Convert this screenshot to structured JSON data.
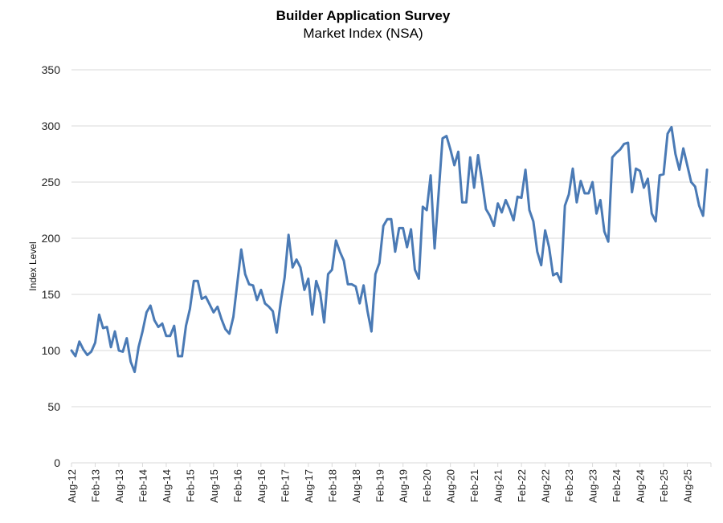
{
  "chart_data": {
    "type": "line",
    "title": "Builder Application Survey",
    "subtitle": "Market Index (NSA)",
    "xlabel": "",
    "ylabel": "Index Level",
    "ylim": [
      0,
      350
    ],
    "yticks": [
      0,
      50,
      100,
      150,
      200,
      250,
      300,
      350
    ],
    "grid": true,
    "legend": "none",
    "line_color": "#4a7ab5",
    "grid_color": "#d9d9d9",
    "x_start": "Aug-12",
    "x_end_axis": "Feb-26",
    "xtick_labels": [
      "Aug-12",
      "Feb-13",
      "Aug-13",
      "Feb-14",
      "Aug-14",
      "Feb-15",
      "Aug-15",
      "Feb-16",
      "Aug-16",
      "Feb-17",
      "Aug-17",
      "Feb-18",
      "Aug-18",
      "Feb-19",
      "Aug-19",
      "Feb-20",
      "Aug-20",
      "Feb-21",
      "Aug-21",
      "Feb-22",
      "Aug-22",
      "Feb-23",
      "Aug-23",
      "Feb-24",
      "Aug-24",
      "Feb-25",
      "Aug-25"
    ],
    "series": [
      {
        "name": "Market Index (NSA)",
        "values": [
          100,
          95,
          108,
          101,
          96,
          99,
          107,
          132,
          120,
          121,
          103,
          117,
          100,
          99,
          111,
          90,
          81,
          103,
          117,
          134,
          140,
          127,
          121,
          124,
          113,
          113,
          122,
          95,
          95,
          122,
          137,
          162,
          162,
          146,
          148,
          141,
          134,
          139,
          128,
          119,
          115,
          130,
          160,
          190,
          168,
          159,
          158,
          145,
          154,
          142,
          139,
          135,
          116,
          143,
          165,
          203,
          174,
          181,
          174,
          154,
          164,
          132,
          162,
          151,
          125,
          168,
          172,
          198,
          188,
          180,
          159,
          159,
          157,
          142,
          158,
          135,
          117,
          168,
          178,
          211,
          217,
          217,
          188,
          209,
          209,
          192,
          208,
          172,
          164,
          228,
          225,
          256,
          191,
          240,
          289,
          291,
          279,
          265,
          277,
          232,
          232,
          272,
          245,
          274,
          251,
          226,
          220,
          211,
          231,
          223,
          234,
          226,
          216,
          237,
          236,
          261,
          225,
          215,
          188,
          176,
          207,
          192,
          167,
          169,
          161,
          229,
          239,
          262,
          232,
          251,
          240,
          240,
          250,
          222,
          234,
          206,
          197,
          272,
          276,
          279,
          284,
          285,
          241,
          262,
          260,
          245,
          253,
          222,
          215,
          256,
          257,
          293,
          299,
          275,
          261,
          280,
          265,
          250,
          246,
          229,
          220,
          261
        ]
      }
    ]
  }
}
